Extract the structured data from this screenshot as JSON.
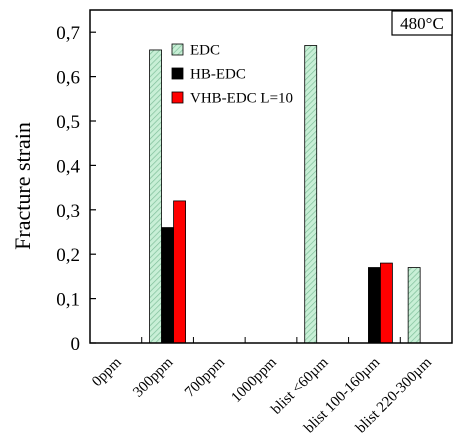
{
  "chart_data": {
    "type": "bar",
    "title": "",
    "annotation": "480°C",
    "xlabel": "",
    "ylabel": "Fracture strain",
    "ylim": [
      0,
      0.75
    ],
    "yticks": [
      "0",
      "0,1",
      "0,2",
      "0,3",
      "0,4",
      "0,5",
      "0,6",
      "0,7"
    ],
    "ytick_values": [
      0,
      0.1,
      0.2,
      0.3,
      0.4,
      0.5,
      0.6,
      0.7
    ],
    "categories": [
      "0ppm",
      "300ppm",
      "700ppm",
      "1000ppm",
      "blist <60µm",
      "blist 100-160µm",
      "blist 220-300µm"
    ],
    "grid": false,
    "legend_position": "top-center",
    "series": [
      {
        "name": "EDC",
        "color": "#b7e4c7",
        "pattern": "hatched",
        "values": [
          null,
          0.66,
          null,
          null,
          0.67,
          null,
          0.17
        ]
      },
      {
        "name": "HB-EDC",
        "color": "#000000",
        "values": [
          null,
          0.26,
          null,
          null,
          null,
          0.17,
          null
        ]
      },
      {
        "name": "VHB-EDC L=10",
        "color": "#ff0000",
        "values": [
          null,
          0.32,
          null,
          null,
          null,
          0.18,
          null
        ]
      }
    ]
  }
}
